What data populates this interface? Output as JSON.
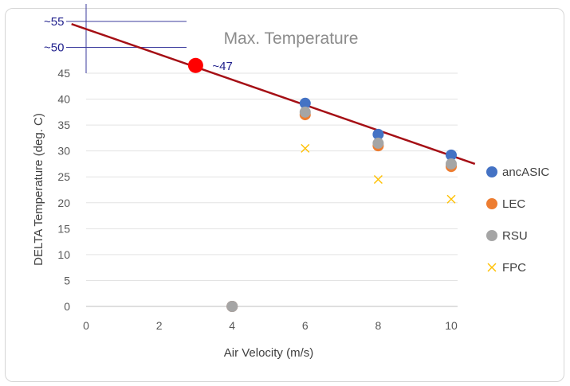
{
  "chart_data": {
    "type": "scatter",
    "title": "Max. Temperature",
    "xlabel": "Air Velocity (m/s)",
    "ylabel": "DELTA Temperature (deg. C)",
    "xlim": [
      0,
      10
    ],
    "ylim": [
      0,
      45
    ],
    "xticks": [
      0,
      2,
      4,
      6,
      8,
      10
    ],
    "yticks": [
      0,
      5,
      10,
      15,
      20,
      25,
      30,
      35,
      40,
      45
    ],
    "grid": "horizontal",
    "legend_position": "right",
    "series": [
      {
        "name": "ancASIC",
        "marker": "circle",
        "color": "#4472c4",
        "points": [
          [
            4,
            0
          ],
          [
            6,
            39.2
          ],
          [
            8,
            33.2
          ],
          [
            10,
            29.2
          ]
        ]
      },
      {
        "name": "LEC",
        "marker": "circle",
        "color": "#ed7d31",
        "points": [
          [
            4,
            0
          ],
          [
            6,
            37.0
          ],
          [
            8,
            31.0
          ],
          [
            10,
            27.0
          ]
        ]
      },
      {
        "name": "RSU",
        "marker": "circle",
        "color": "#a5a5a5",
        "points": [
          [
            4,
            0
          ],
          [
            6,
            37.5
          ],
          [
            8,
            31.5
          ],
          [
            10,
            27.5
          ]
        ]
      },
      {
        "name": "FPC",
        "marker": "x",
        "color": "#ffc000",
        "points": [
          [
            6,
            30.5
          ],
          [
            8,
            24.5
          ],
          [
            10,
            20.7
          ]
        ]
      }
    ],
    "trendline": {
      "color": "#a50f15",
      "from": [
        -0.4,
        54.5
      ],
      "to": [
        10.65,
        27.5
      ]
    },
    "highlight_point": {
      "x": 3,
      "y": 46.5,
      "color": "#ff0000",
      "label": "~47"
    },
    "annotations": [
      {
        "text": "~55",
        "value": 55
      },
      {
        "text": "~50",
        "value": 50
      }
    ]
  }
}
